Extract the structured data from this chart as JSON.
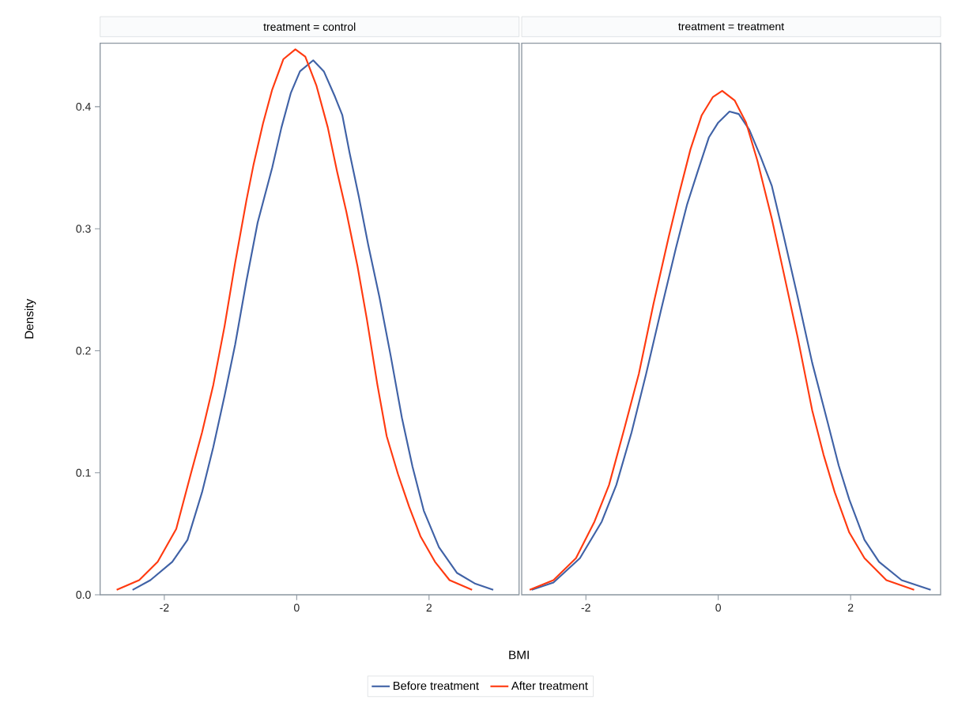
{
  "chart_data": [
    {
      "type": "line",
      "title": "treatment = control",
      "xlabel": "BMI",
      "ylabel": "Density",
      "legend": "bottom",
      "xlim": [
        -2.97,
        3.36
      ],
      "ylim": [
        0,
        0.452
      ],
      "xticks": [
        -2,
        0,
        2
      ],
      "yticks": [
        {
          "value": 0,
          "label": "0.0"
        },
        0.1,
        0.2,
        0.3,
        0.4
      ],
      "series": [
        {
          "name": "Before treatment",
          "color": "#4062a6",
          "x": [
            -2.48,
            -2.21,
            -1.88,
            -1.65,
            -1.43,
            -1.26,
            -1.09,
            -0.93,
            -0.76,
            -0.59,
            -0.37,
            -0.23,
            -0.09,
            0.05,
            0.25,
            0.41,
            0.58,
            0.69,
            0.8,
            0.94,
            1.08,
            1.25,
            1.42,
            1.59,
            1.75,
            1.92,
            2.15,
            2.42,
            2.7,
            2.97
          ],
          "values": [
            0.004,
            0.012,
            0.027,
            0.045,
            0.084,
            0.121,
            0.163,
            0.205,
            0.257,
            0.305,
            0.35,
            0.383,
            0.411,
            0.429,
            0.438,
            0.429,
            0.408,
            0.393,
            0.362,
            0.326,
            0.287,
            0.244,
            0.196,
            0.145,
            0.105,
            0.069,
            0.039,
            0.018,
            0.009,
            0.004
          ]
        },
        {
          "name": "After treatment",
          "color": "#ff3a10",
          "x": [
            -2.72,
            -2.38,
            -2.1,
            -1.82,
            -1.6,
            -1.43,
            -1.26,
            -1.09,
            -0.93,
            -0.76,
            -0.65,
            -0.51,
            -0.37,
            -0.2,
            -0.02,
            0.13,
            0.3,
            0.47,
            0.61,
            0.75,
            0.92,
            1.06,
            1.22,
            1.36,
            1.53,
            1.7,
            1.87,
            2.09,
            2.31,
            2.65
          ],
          "values": [
            0.004,
            0.012,
            0.027,
            0.054,
            0.099,
            0.133,
            0.172,
            0.22,
            0.272,
            0.323,
            0.353,
            0.386,
            0.414,
            0.439,
            0.447,
            0.441,
            0.417,
            0.383,
            0.347,
            0.314,
            0.269,
            0.226,
            0.172,
            0.13,
            0.099,
            0.072,
            0.048,
            0.027,
            0.012,
            0.004
          ]
        }
      ]
    },
    {
      "type": "line",
      "title": "treatment = treatment",
      "tick_labels": "x",
      "xlim": [
        -2.97,
        3.36
      ],
      "ylim": [
        0,
        0.452
      ],
      "xticks": [
        -2,
        0,
        2
      ],
      "series": [
        {
          "color": "#4062a6",
          "x": [
            -2.82,
            -2.49,
            -2.09,
            -1.76,
            -1.54,
            -1.31,
            -1.09,
            -0.87,
            -0.64,
            -0.47,
            -0.31,
            -0.14,
            0.0,
            0.17,
            0.31,
            0.47,
            0.64,
            0.81,
            0.98,
            1.2,
            1.42,
            1.65,
            1.82,
            1.98,
            2.21,
            2.43,
            2.77,
            3.21
          ],
          "values": [
            0.004,
            0.01,
            0.03,
            0.06,
            0.09,
            0.133,
            0.181,
            0.232,
            0.284,
            0.32,
            0.347,
            0.375,
            0.387,
            0.396,
            0.394,
            0.381,
            0.359,
            0.335,
            0.296,
            0.244,
            0.19,
            0.142,
            0.106,
            0.078,
            0.045,
            0.027,
            0.012,
            0.004
          ]
        },
        {
          "color": "#ff3a10",
          "x": [
            -2.85,
            -2.49,
            -2.15,
            -1.87,
            -1.65,
            -1.42,
            -1.2,
            -0.98,
            -0.75,
            -0.59,
            -0.42,
            -0.25,
            -0.08,
            0.06,
            0.25,
            0.42,
            0.59,
            0.81,
            0.98,
            1.2,
            1.42,
            1.59,
            1.76,
            1.98,
            2.21,
            2.54,
            2.96
          ],
          "values": [
            0.004,
            0.012,
            0.03,
            0.06,
            0.09,
            0.136,
            0.181,
            0.238,
            0.293,
            0.329,
            0.365,
            0.393,
            0.408,
            0.413,
            0.405,
            0.387,
            0.356,
            0.308,
            0.266,
            0.211,
            0.151,
            0.115,
            0.084,
            0.051,
            0.03,
            0.012,
            0.004
          ]
        }
      ]
    }
  ]
}
